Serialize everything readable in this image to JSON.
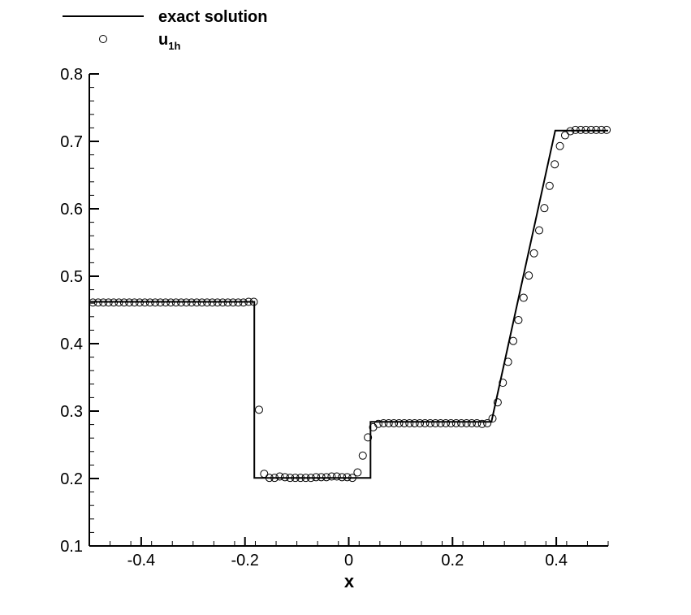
{
  "chart_data": {
    "type": "line",
    "title": "",
    "xlabel": "x",
    "ylabel": "",
    "xlim": [
      -0.5,
      0.5
    ],
    "ylim": [
      0.1,
      0.8
    ],
    "x_ticks": [
      -0.4,
      -0.2,
      0,
      0.2,
      0.4
    ],
    "x_tick_labels": [
      "-0.4",
      "-0.2",
      "0",
      "0.2",
      "0.4"
    ],
    "y_ticks": [
      0.1,
      0.2,
      0.3,
      0.4,
      0.5,
      0.6,
      0.7,
      0.8
    ],
    "y_tick_labels": [
      "0.1",
      "0.2",
      "0.3",
      "0.4",
      "0.5",
      "0.6",
      "0.7",
      "0.8"
    ],
    "grid": false,
    "legend_position": "top-left-outside",
    "legend": {
      "exact_label": "exact solution",
      "numeric_label_base": "u",
      "numeric_label_sub": "1h"
    },
    "series": [
      {
        "name": "exact solution",
        "style": "line",
        "color": "#000000",
        "points": [
          [
            -0.5,
            0.462
          ],
          [
            -0.182,
            0.462
          ],
          [
            -0.182,
            0.201
          ],
          [
            0.042,
            0.201
          ],
          [
            0.042,
            0.284
          ],
          [
            0.275,
            0.284
          ],
          [
            0.398,
            0.716
          ],
          [
            0.5,
            0.716
          ]
        ]
      },
      {
        "name": "u1h",
        "style": "marker-circle",
        "color": "#000000",
        "points": [
          [
            -0.493,
            0.461
          ],
          [
            -0.483,
            0.461
          ],
          [
            -0.473,
            0.461
          ],
          [
            -0.463,
            0.461
          ],
          [
            -0.453,
            0.461
          ],
          [
            -0.443,
            0.461
          ],
          [
            -0.433,
            0.461
          ],
          [
            -0.423,
            0.461
          ],
          [
            -0.413,
            0.461
          ],
          [
            -0.403,
            0.461
          ],
          [
            -0.393,
            0.461
          ],
          [
            -0.383,
            0.461
          ],
          [
            -0.373,
            0.461
          ],
          [
            -0.363,
            0.461
          ],
          [
            -0.353,
            0.461
          ],
          [
            -0.343,
            0.461
          ],
          [
            -0.333,
            0.461
          ],
          [
            -0.323,
            0.461
          ],
          [
            -0.313,
            0.461
          ],
          [
            -0.303,
            0.461
          ],
          [
            -0.293,
            0.461
          ],
          [
            -0.283,
            0.461
          ],
          [
            -0.273,
            0.461
          ],
          [
            -0.263,
            0.461
          ],
          [
            -0.253,
            0.461
          ],
          [
            -0.243,
            0.461
          ],
          [
            -0.233,
            0.461
          ],
          [
            -0.223,
            0.461
          ],
          [
            -0.213,
            0.461
          ],
          [
            -0.203,
            0.461
          ],
          [
            -0.193,
            0.462
          ],
          [
            -0.183,
            0.462
          ],
          [
            -0.173,
            0.302
          ],
          [
            -0.163,
            0.207
          ],
          [
            -0.153,
            0.201
          ],
          [
            -0.143,
            0.201
          ],
          [
            -0.133,
            0.203
          ],
          [
            -0.123,
            0.202
          ],
          [
            -0.113,
            0.201
          ],
          [
            -0.103,
            0.201
          ],
          [
            -0.093,
            0.201
          ],
          [
            -0.083,
            0.201
          ],
          [
            -0.073,
            0.201
          ],
          [
            -0.063,
            0.202
          ],
          [
            -0.053,
            0.202
          ],
          [
            -0.043,
            0.202
          ],
          [
            -0.033,
            0.203
          ],
          [
            -0.023,
            0.203
          ],
          [
            -0.013,
            0.202
          ],
          [
            -0.003,
            0.202
          ],
          [
            0.007,
            0.201
          ],
          [
            0.017,
            0.209
          ],
          [
            0.027,
            0.234
          ],
          [
            0.037,
            0.261
          ],
          [
            0.047,
            0.276
          ],
          [
            0.057,
            0.281
          ],
          [
            0.067,
            0.282
          ],
          [
            0.077,
            0.282
          ],
          [
            0.087,
            0.282
          ],
          [
            0.097,
            0.282
          ],
          [
            0.107,
            0.282
          ],
          [
            0.117,
            0.282
          ],
          [
            0.127,
            0.282
          ],
          [
            0.137,
            0.282
          ],
          [
            0.147,
            0.282
          ],
          [
            0.157,
            0.282
          ],
          [
            0.167,
            0.282
          ],
          [
            0.177,
            0.282
          ],
          [
            0.187,
            0.282
          ],
          [
            0.197,
            0.282
          ],
          [
            0.207,
            0.282
          ],
          [
            0.217,
            0.282
          ],
          [
            0.227,
            0.282
          ],
          [
            0.237,
            0.282
          ],
          [
            0.247,
            0.282
          ],
          [
            0.257,
            0.281
          ],
          [
            0.267,
            0.282
          ],
          [
            0.277,
            0.289
          ],
          [
            0.287,
            0.313
          ],
          [
            0.297,
            0.342
          ],
          [
            0.307,
            0.373
          ],
          [
            0.317,
            0.404
          ],
          [
            0.327,
            0.435
          ],
          [
            0.337,
            0.468
          ],
          [
            0.347,
            0.501
          ],
          [
            0.357,
            0.534
          ],
          [
            0.367,
            0.568
          ],
          [
            0.377,
            0.601
          ],
          [
            0.387,
            0.634
          ],
          [
            0.397,
            0.666
          ],
          [
            0.407,
            0.693
          ],
          [
            0.417,
            0.709
          ],
          [
            0.427,
            0.715
          ],
          [
            0.437,
            0.717
          ],
          [
            0.447,
            0.717
          ],
          [
            0.457,
            0.717
          ],
          [
            0.467,
            0.717
          ],
          [
            0.477,
            0.717
          ],
          [
            0.487,
            0.717
          ],
          [
            0.497,
            0.717
          ]
        ]
      }
    ]
  }
}
